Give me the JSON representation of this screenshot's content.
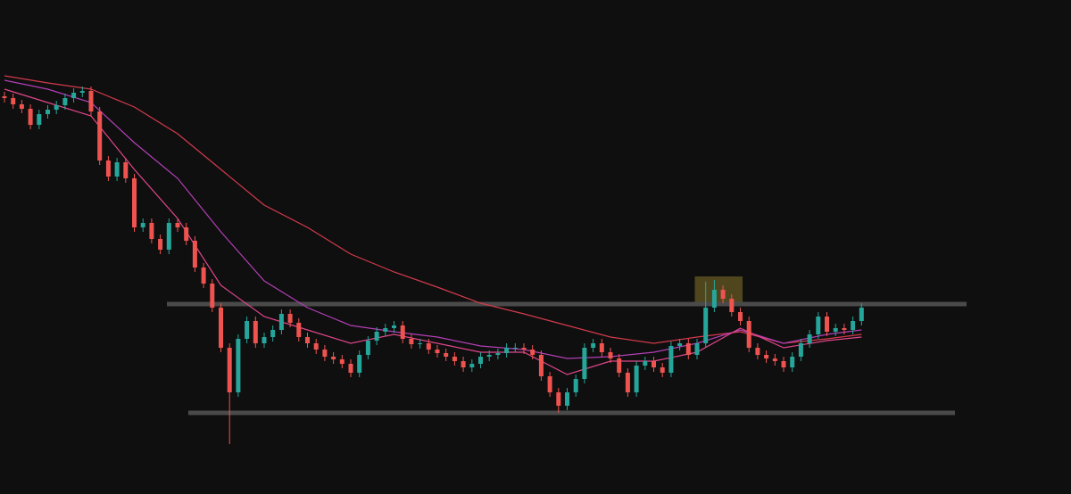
{
  "chart_data": {
    "type": "candlestick",
    "ylim": [
      0,
      554
    ],
    "up_color": "#26a69a",
    "down_color": "#ef5350",
    "open": [
      446,
      444,
      437,
      432,
      414,
      426,
      431,
      436,
      444,
      450,
      452,
      429,
      374,
      356,
      372,
      354,
      299,
      304,
      286,
      274,
      304,
      299,
      284,
      254,
      236,
      209,
      164,
      114,
      174,
      194,
      169,
      176,
      184,
      202,
      192,
      176,
      169,
      162,
      154,
      151,
      146,
      136,
      156,
      172,
      182,
      186,
      189,
      174,
      168,
      169,
      162,
      158,
      154,
      149,
      142,
      146,
      154,
      156,
      158,
      164,
      164,
      162,
      156,
      132,
      114,
      99,
      114,
      129,
      164,
      169,
      159,
      152,
      136,
      114,
      144,
      149,
      142,
      136,
      166,
      169,
      156,
      169,
      209,
      229,
      219,
      204,
      194,
      164,
      156,
      152,
      149,
      142,
      154,
      169,
      179,
      199,
      182,
      186,
      184,
      194
    ],
    "high": [
      451,
      449,
      442,
      437,
      431,
      436,
      441,
      449,
      455,
      457,
      457,
      434,
      379,
      377,
      377,
      359,
      309,
      309,
      291,
      309,
      309,
      304,
      289,
      259,
      241,
      214,
      169,
      179,
      199,
      199,
      181,
      189,
      207,
      207,
      197,
      181,
      174,
      167,
      159,
      156,
      151,
      161,
      177,
      187,
      191,
      194,
      194,
      179,
      174,
      174,
      167,
      163,
      159,
      154,
      151,
      159,
      161,
      163,
      169,
      169,
      169,
      167,
      161,
      137,
      119,
      119,
      134,
      169,
      174,
      174,
      164,
      157,
      141,
      149,
      154,
      154,
      147,
      171,
      174,
      174,
      174,
      238,
      240,
      234,
      224,
      209,
      199,
      169,
      161,
      157,
      154,
      159,
      174,
      184,
      204,
      204,
      191,
      191,
      199,
      214
    ],
    "low": [
      439,
      432,
      427,
      409,
      409,
      421,
      426,
      431,
      439,
      445,
      424,
      369,
      351,
      351,
      349,
      294,
      294,
      281,
      269,
      269,
      294,
      279,
      249,
      231,
      204,
      159,
      56,
      109,
      169,
      164,
      164,
      171,
      179,
      187,
      171,
      164,
      157,
      149,
      146,
      141,
      131,
      131,
      151,
      167,
      177,
      181,
      169,
      163,
      163,
      157,
      153,
      149,
      144,
      137,
      137,
      141,
      149,
      151,
      153,
      159,
      157,
      151,
      127,
      109,
      91,
      94,
      109,
      124,
      159,
      154,
      147,
      131,
      109,
      109,
      139,
      137,
      131,
      131,
      161,
      151,
      151,
      164,
      204,
      214,
      199,
      189,
      159,
      151,
      147,
      144,
      137,
      137,
      149,
      164,
      174,
      177,
      177,
      179,
      179,
      189
    ],
    "close": [
      444,
      437,
      432,
      414,
      426,
      431,
      436,
      444,
      450,
      452,
      429,
      374,
      356,
      372,
      354,
      299,
      304,
      286,
      274,
      304,
      299,
      284,
      254,
      236,
      209,
      164,
      114,
      174,
      194,
      169,
      176,
      184,
      202,
      192,
      176,
      169,
      162,
      154,
      151,
      146,
      136,
      156,
      172,
      182,
      186,
      189,
      174,
      168,
      169,
      162,
      158,
      154,
      149,
      142,
      146,
      154,
      156,
      158,
      164,
      164,
      162,
      156,
      132,
      114,
      99,
      114,
      129,
      164,
      169,
      159,
      152,
      136,
      114,
      144,
      149,
      142,
      136,
      166,
      169,
      156,
      169,
      209,
      229,
      219,
      204,
      194,
      164,
      156,
      152,
      149,
      142,
      154,
      169,
      179,
      199,
      182,
      186,
      184,
      194,
      209
    ],
    "moving_averages": {
      "x": [
        0,
        5,
        10,
        15,
        20,
        25,
        30,
        35,
        40,
        45,
        50,
        55,
        60,
        65,
        70,
        75,
        80,
        85,
        90,
        95,
        99
      ],
      "series": [
        {
          "color": "#d23a4c",
          "values": [
            469,
            461,
            454,
            434,
            404,
            364,
            324,
            299,
            269,
            249,
            232,
            214,
            202,
            189,
            176,
            169,
            176,
            182,
            169,
            174,
            179
          ]
        },
        {
          "color": "#b23fb5",
          "values": [
            464,
            454,
            439,
            394,
            354,
            294,
            239,
            209,
            189,
            182,
            176,
            166,
            162,
            152,
            154,
            159,
            169,
            184,
            169,
            179,
            184
          ]
        },
        {
          "color": "#e0468c",
          "values": [
            454,
            439,
            424,
            364,
            309,
            234,
            199,
            184,
            169,
            179,
            169,
            159,
            159,
            134,
            149,
            149,
            159,
            186,
            164,
            172,
            176
          ]
        }
      ]
    },
    "levels": [
      {
        "value": 213,
        "color": "#4a4a4a"
      },
      {
        "value": 91,
        "color": "#4a4a4a"
      }
    ],
    "zone": {
      "low": 214,
      "high": 244,
      "from": 80,
      "to": 85,
      "color": "#5a5020"
    }
  }
}
